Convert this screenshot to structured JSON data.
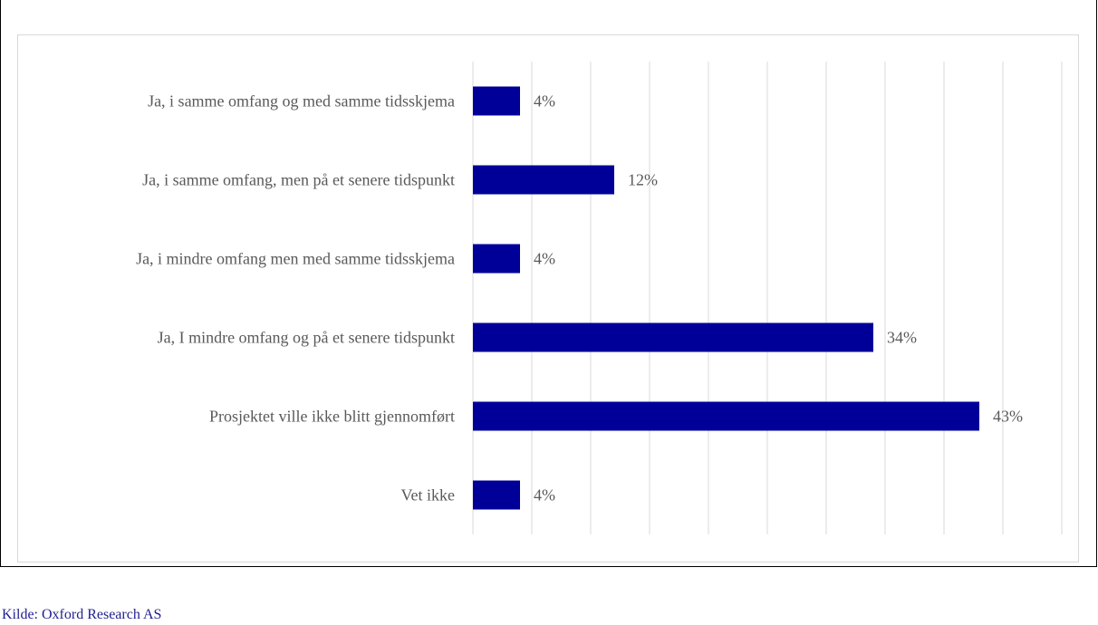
{
  "figure": {
    "caption": "",
    "source": "Kilde: Oxford Research AS"
  },
  "colors": {
    "bar": "#000099",
    "grid": "#d9d9d9",
    "text": "#595959",
    "source": "#1f1f8f"
  },
  "chart_data": {
    "type": "bar",
    "orientation": "horizontal",
    "categories": [
      "Ja, i samme omfang og med samme tidsskjema",
      "Ja, i samme omfang, men på et senere tidspunkt",
      "Ja, i mindre omfang men med samme tidsskjema",
      "Ja, I mindre omfang og på et senere tidspunkt",
      "Prosjektet ville ikke blitt gjennomført",
      "Vet ikke"
    ],
    "values": [
      4,
      12,
      4,
      34,
      43,
      4
    ],
    "value_labels": [
      "4%",
      "12%",
      "4%",
      "34%",
      "43%",
      "4%"
    ],
    "xlim": [
      0,
      50
    ],
    "grid_step": 5,
    "xlabel": "",
    "ylabel": "",
    "grid": true,
    "legend": false
  }
}
